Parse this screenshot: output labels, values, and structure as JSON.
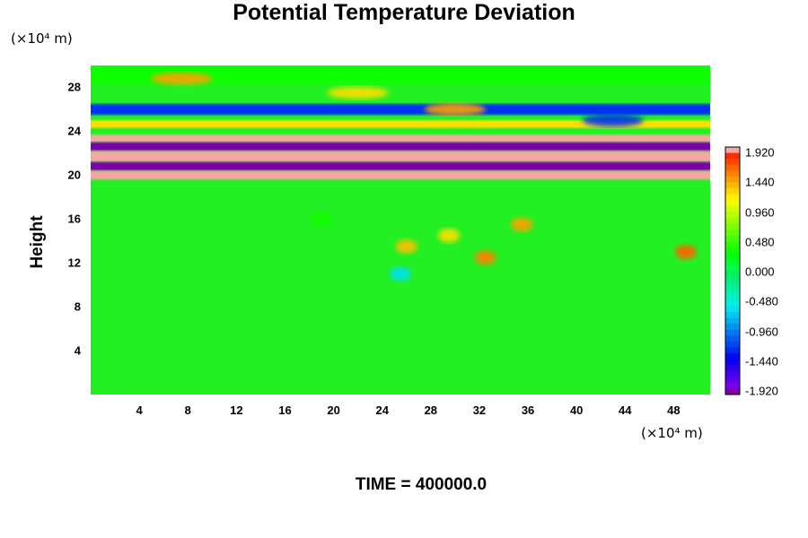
{
  "chart_data": {
    "type": "heatmap",
    "title": "Potential Temperature Deviation",
    "ylabel": "Height",
    "x_unit": "(×10⁴ m)",
    "y_unit": "(×10⁴ m)",
    "x_ticks": [
      4,
      8,
      12,
      16,
      20,
      24,
      28,
      32,
      36,
      40,
      44,
      48
    ],
    "y_ticks": [
      4,
      8,
      12,
      16,
      20,
      24,
      28
    ],
    "xlim": [
      0,
      51
    ],
    "ylim": [
      0,
      30
    ],
    "colorbar": {
      "labels": [
        "1.920",
        "1.440",
        "0.960",
        "0.480",
        "0.000",
        "-0.480",
        "-0.960",
        "-1.440",
        "-1.920"
      ],
      "range": [
        -1.92,
        1.92
      ],
      "top_color": "#f4a8a0",
      "bottom_color": "#7a00a8"
    },
    "background_color": "#22f022",
    "bands": [
      {
        "y_bottom": 28.3,
        "y_top": 30.0,
        "value": 0.3
      },
      {
        "y_bottom": 25.5,
        "y_top": 26.5,
        "value": -1.2
      },
      {
        "y_bottom": 24.3,
        "y_top": 25.0,
        "value": 1.2
      },
      {
        "y_bottom": 23.0,
        "y_top": 23.7,
        "value": 2.0
      },
      {
        "y_bottom": 22.2,
        "y_top": 23.0,
        "value": -2.0
      },
      {
        "y_bottom": 21.2,
        "y_top": 22.2,
        "value": 2.0
      },
      {
        "y_bottom": 20.4,
        "y_top": 21.2,
        "value": -2.0
      },
      {
        "y_bottom": 19.6,
        "y_top": 20.4,
        "value": 2.0
      }
    ],
    "blobs": [
      {
        "x": 7.5,
        "y": 28.8,
        "value": 1.4
      },
      {
        "x": 22,
        "y": 27.5,
        "value": 1.2
      },
      {
        "x": 30,
        "y": 26,
        "value": 1.4
      },
      {
        "x": 43,
        "y": 25,
        "value": -1.2
      },
      {
        "x": 26,
        "y": 13.5,
        "value": 1.3
      },
      {
        "x": 29.5,
        "y": 14.5,
        "value": 1.2
      },
      {
        "x": 35.5,
        "y": 15.5,
        "value": 1.4
      },
      {
        "x": 32.5,
        "y": 12.5,
        "value": 1.5
      },
      {
        "x": 49,
        "y": 13,
        "value": 1.6
      },
      {
        "x": 25.5,
        "y": 11,
        "value": -0.6
      },
      {
        "x": 19,
        "y": 16,
        "value": 0.3
      }
    ],
    "footer": "TIME = 400000.0"
  }
}
